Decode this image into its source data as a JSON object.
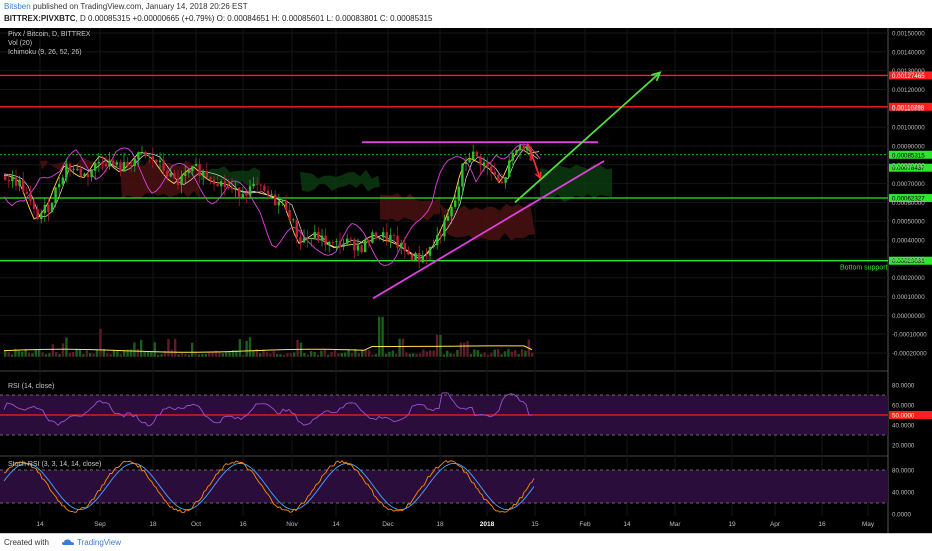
{
  "header": {
    "author": "Bitsben",
    "publish_text": "published on TradingView.com, January 14, 2018 20:26 EST",
    "symbol": "BITTREX:PIVXBTC",
    "interval": "D",
    "last": "0.00085315",
    "change": "+0.00000665 (+0.79%)",
    "open": "O: 0.00084651",
    "high": "H: 0.00085601",
    "low": "L: 0.00083801",
    "close": "C: 0.00085315"
  },
  "legend": {
    "pair": "Pivx / Bitcoin, D, BITTREX",
    "vol": "Vol (20)",
    "ichimoku": "Ichimoku (9, 26, 52, 26)",
    "rsi": "RSI (14, close)",
    "stoch": "Stoch RSI (3, 3, 14, 14, close)"
  },
  "footer": {
    "created": "Created with",
    "brand": "TradingView"
  },
  "colors": {
    "resistance": "#ff1e1e",
    "support": "#2ee62e",
    "triangle": "#e040e0",
    "arrow_up": "#4fdc3c",
    "arrow_down": "#ff3030",
    "bull": "#2dc22d",
    "bear": "#c0203a",
    "rsi_line": "#9c4fd6",
    "stoch_k": "#ff8a00",
    "stoch_d": "#4aa3ff"
  },
  "chart_data": [
    {
      "type": "candlestick",
      "title": "Pivx / Bitcoin, D, BITTREX",
      "y_ticks": [
        "0.00150000",
        "0.00140000",
        "0.00130000",
        "0.00120000",
        "0.00110000",
        "0.00100000",
        "0.00090000",
        "0.00080000",
        "0.00070000",
        "0.00060000",
        "0.00050000",
        "0.00040000",
        "0.00030000",
        "0.00020000",
        "0.00010000",
        "0.00000000",
        "-0.00010000",
        "-0.00020000"
      ],
      "x_ticks": [
        "14",
        "Sep",
        "18",
        "Oct",
        "16",
        "Nov",
        "14",
        "Dec",
        "18",
        "2018",
        "15",
        "Feb",
        "14",
        "Mar",
        "19",
        "Apr",
        "16",
        "May"
      ],
      "price_labels": [
        {
          "text": "0.00127465",
          "price": 0.00127465,
          "color": "resistance"
        },
        {
          "text": "0.00110798",
          "price": 0.00110798,
          "color": "resistance"
        },
        {
          "text": "0.00085315",
          "price": 0.00085315,
          "color": "support"
        },
        {
          "text": "0.00078437",
          "price": 0.00078437,
          "color": "support"
        },
        {
          "text": "0.00062327",
          "price": 0.00062327,
          "color": "support"
        },
        {
          "text": "0.00029031",
          "price": 0.00029031,
          "color": "support"
        }
      ],
      "horizontal_levels": [
        0.00127465,
        0.00110798,
        0.00062327,
        0.00029031
      ],
      "annotations": [
        {
          "text": "Bottom support",
          "price": 0.00029031
        }
      ]
    },
    {
      "type": "line",
      "title": "RSI (14, close)",
      "y_ticks": [
        "80.0000",
        "60.0000",
        "50.0000",
        "40.0000",
        "20.0000"
      ],
      "levels": [
        70,
        50,
        30
      ]
    },
    {
      "type": "line",
      "title": "Stoch RSI (3, 3, 14, 14, close)",
      "y_ticks": [
        "80.0000",
        "40.0000",
        "0.0000"
      ],
      "levels": [
        80,
        20
      ]
    }
  ]
}
